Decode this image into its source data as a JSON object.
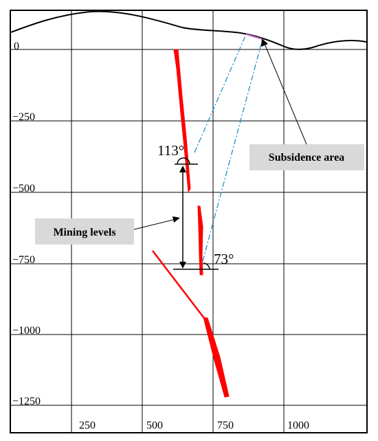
{
  "y_ticks": [
    "0",
    "−250",
    "−500",
    "−750",
    "−1000",
    "−1250"
  ],
  "x_ticks": [
    "250",
    "500",
    "750",
    "1000"
  ],
  "angle_upper": "113°",
  "angle_lower": "73°",
  "subsidence_label": "Subsidence area",
  "mining_levels_label": "Mining levels",
  "colors": {
    "orebody": "#ff0000",
    "guide_line": "#1e90d0",
    "label_box": "#d9d9d9",
    "subsidence_segment": "#d070d0"
  }
}
